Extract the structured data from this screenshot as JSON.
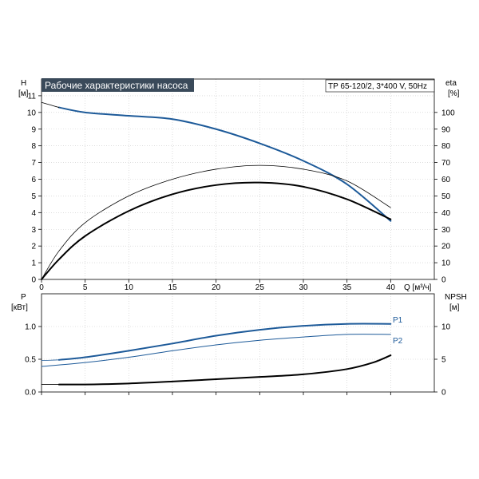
{
  "colors": {
    "background": "#ffffff",
    "title_bg": "#3a4a5a",
    "title_text": "#ffffff",
    "curve_blue": "#1d5a99",
    "curve_black": "#000000",
    "grid": "#c8c8c8"
  },
  "chart_data": [
    {
      "type": "line",
      "title": "Рабочие характеристики насоса",
      "model_label": "TP 65-120/2, 3*400 V, 50Hz",
      "ylabel_left": "H",
      "ylabel_left_unit": "[м]",
      "ylabel_right": "eta",
      "ylabel_right_unit": "[%]",
      "xlabel": "Q [м³/ч]",
      "xlim": [
        0,
        45
      ],
      "ylim_left": [
        0,
        12
      ],
      "ylim_right": [
        0,
        120
      ],
      "grid": true,
      "x_ticks": [
        0,
        5,
        10,
        15,
        20,
        25,
        30,
        35,
        40
      ],
      "y_ticks_left": [
        0,
        1,
        2,
        3,
        4,
        5,
        6,
        7,
        8,
        9,
        10,
        11
      ],
      "y_ticks_right": [
        0,
        10,
        20,
        30,
        40,
        50,
        60,
        70,
        80,
        90,
        100
      ],
      "x_tick_labels": [
        "0",
        "5",
        "10",
        "15",
        "20",
        "25",
        "30",
        "35",
        "40"
      ],
      "y_tick_labels_left": [
        "0",
        "1",
        "2",
        "3",
        "4",
        "5",
        "6",
        "7",
        "8",
        "9",
        "10",
        "11"
      ],
      "y_tick_labels_right": [
        "0",
        "10",
        "20",
        "30",
        "40",
        "50",
        "60",
        "70",
        "80",
        "90",
        "100"
      ],
      "series": [
        {
          "axis": "left",
          "color": "#1d5a99",
          "width": 2.0,
          "points": [
            [
              2,
              10.3
            ],
            [
              5,
              10.0
            ],
            [
              10,
              9.8
            ],
            [
              15,
              9.6
            ],
            [
              20,
              9.0
            ],
            [
              25,
              8.15
            ],
            [
              30,
              7.1
            ],
            [
              35,
              5.7
            ],
            [
              40,
              3.5
            ]
          ]
        },
        {
          "axis": "left",
          "color": "#000000",
          "width": 0.8,
          "points": [
            [
              0,
              10.6
            ],
            [
              1,
              10.45
            ],
            [
              2,
              10.3
            ]
          ]
        },
        {
          "axis": "right",
          "color": "#000000",
          "width": 2.0,
          "points": [
            [
              0,
              0
            ],
            [
              2,
              12
            ],
            [
              5,
              26
            ],
            [
              10,
              41
            ],
            [
              15,
              51
            ],
            [
              20,
              56.5
            ],
            [
              25,
              58
            ],
            [
              30,
              55.5
            ],
            [
              35,
              48
            ],
            [
              40,
              36
            ]
          ]
        },
        {
          "axis": "right",
          "color": "#000000",
          "width": 0.8,
          "points": [
            [
              0,
              0
            ],
            [
              2,
              17
            ],
            [
              5,
              34
            ],
            [
              10,
              50
            ],
            [
              15,
              60
            ],
            [
              20,
              66
            ],
            [
              25,
              68.3
            ],
            [
              30,
              66
            ],
            [
              35,
              59
            ],
            [
              40,
              43
            ]
          ]
        }
      ]
    },
    {
      "type": "line",
      "ylabel_left": "P",
      "ylabel_left_unit": "[кВт]",
      "ylabel_right": "NPSH",
      "ylabel_right_unit": "[м]",
      "xlim": [
        0,
        45
      ],
      "ylim_left": [
        0,
        1.5
      ],
      "ylim_right": [
        0,
        15
      ],
      "grid": true,
      "x_ticks": [
        0,
        5,
        10,
        15,
        20,
        25,
        30,
        35,
        40
      ],
      "y_ticks_left": [
        0,
        0.5,
        1.0
      ],
      "y_ticks_right": [
        0,
        5,
        10
      ],
      "y_tick_labels_left": [
        "0.0",
        "0.5",
        "1.0"
      ],
      "y_tick_labels_right": [
        "0",
        "5",
        "10"
      ],
      "annotations": [
        "P1",
        "P2"
      ],
      "series": [
        {
          "name": "P1",
          "axis": "left",
          "color": "#1d5a99",
          "width": 2.0,
          "points": [
            [
              2,
              0.49
            ],
            [
              5,
              0.53
            ],
            [
              10,
              0.63
            ],
            [
              15,
              0.74
            ],
            [
              20,
              0.86
            ],
            [
              25,
              0.95
            ],
            [
              30,
              1.01
            ],
            [
              35,
              1.04
            ],
            [
              40,
              1.04
            ]
          ]
        },
        {
          "axis": "left",
          "color": "#1d5a99",
          "width": 0.8,
          "points": [
            [
              0,
              0.48
            ],
            [
              1,
              0.485
            ],
            [
              2,
              0.49
            ]
          ]
        },
        {
          "name": "P2",
          "axis": "left",
          "color": "#1d5a99",
          "width": 1.0,
          "points": [
            [
              0,
              0.39
            ],
            [
              5,
              0.45
            ],
            [
              10,
              0.53
            ],
            [
              15,
              0.63
            ],
            [
              20,
              0.72
            ],
            [
              25,
              0.79
            ],
            [
              30,
              0.84
            ],
            [
              35,
              0.88
            ],
            [
              40,
              0.88
            ]
          ]
        },
        {
          "axis": "right",
          "color": "#000000",
          "width": 2.0,
          "points": [
            [
              2,
              1.15
            ],
            [
              5,
              1.15
            ],
            [
              10,
              1.3
            ],
            [
              15,
              1.6
            ],
            [
              20,
              1.95
            ],
            [
              25,
              2.3
            ],
            [
              30,
              2.7
            ],
            [
              35,
              3.5
            ],
            [
              38,
              4.5
            ],
            [
              40,
              5.6
            ]
          ]
        },
        {
          "axis": "right",
          "color": "#000000",
          "width": 0.8,
          "points": [
            [
              0,
              1.15
            ],
            [
              2,
              1.15
            ]
          ]
        }
      ]
    }
  ]
}
